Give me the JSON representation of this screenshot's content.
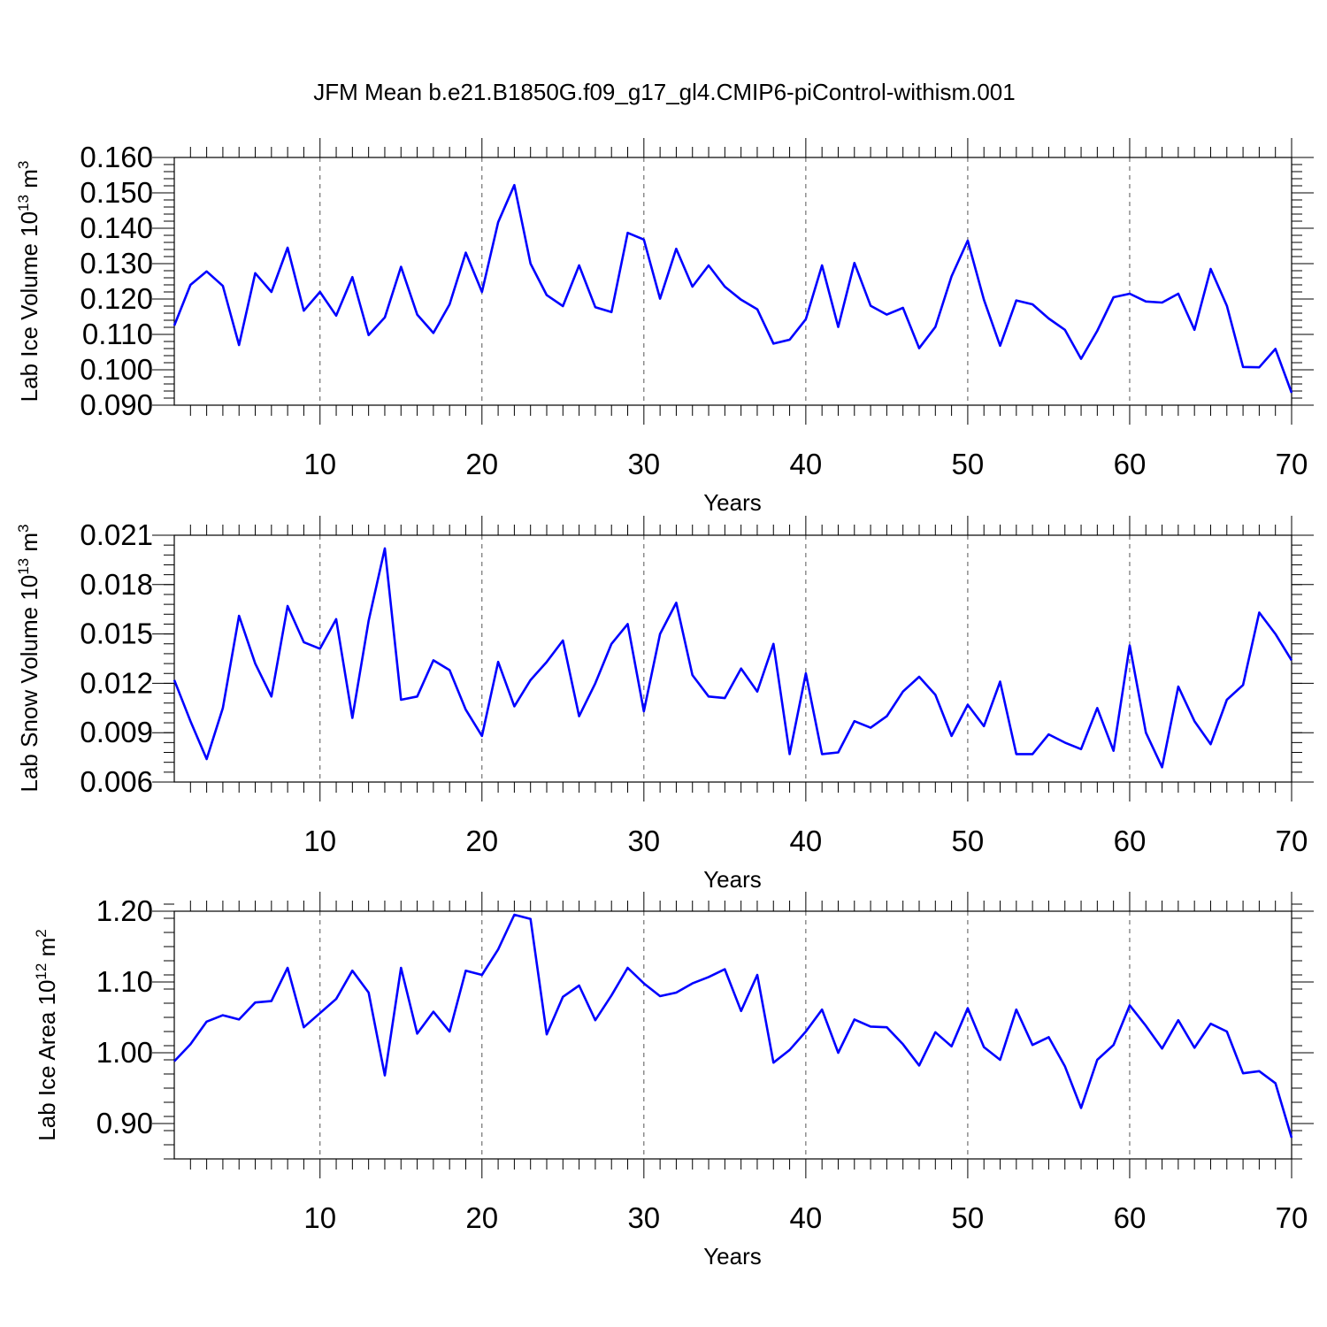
{
  "figure_title": "JFM Mean b.e21.B1850G.f09_g17_gl4.CMIP6-piControl-withism.001",
  "colors": {
    "line": "#0000ff",
    "frame": "#000000",
    "grid": "#555555"
  },
  "chart_data": [
    {
      "type": "line",
      "ylabel": {
        "text": "Lab Ice Volume 10",
        "sup1": "13",
        "mid": " m",
        "sup2": "3"
      },
      "xlabel": "Years",
      "xlim": [
        1,
        70
      ],
      "ylim": [
        0.09,
        0.16
      ],
      "yticks": [
        0.09,
        0.1,
        0.11,
        0.12,
        0.13,
        0.14,
        0.15,
        0.16
      ],
      "ytick_labels": [
        "0.090",
        "0.100",
        "0.110",
        "0.120",
        "0.130",
        "0.140",
        "0.150",
        "0.160"
      ],
      "yminor": 0.002,
      "xticks": [
        10,
        20,
        30,
        40,
        50,
        60,
        70
      ],
      "xtick_labels": [
        "10",
        "20",
        "30",
        "40",
        "50",
        "60",
        "70"
      ],
      "grid": "vertical dashed at major x ticks",
      "series": [
        {
          "values": [
            0.1125,
            0.124,
            0.1278,
            0.1237,
            0.107,
            0.1273,
            0.122,
            0.1345,
            0.1167,
            0.122,
            0.1153,
            0.1262,
            0.1098,
            0.1148,
            0.1291,
            0.1156,
            0.1104,
            0.1185,
            0.1331,
            0.122,
            0.1417,
            0.1522,
            0.13,
            0.1211,
            0.118,
            0.1295,
            0.1177,
            0.1163,
            0.1387,
            0.1368,
            0.1201,
            0.1342,
            0.1235,
            0.1295,
            0.1235,
            0.1198,
            0.1171,
            0.1074,
            0.1085,
            0.1143,
            0.1295,
            0.1121,
            0.1302,
            0.1181,
            0.1156,
            0.1175,
            0.1061,
            0.1121,
            0.1264,
            0.1365,
            0.1198,
            0.1068,
            0.1196,
            0.1185,
            0.1145,
            0.1113,
            0.1031,
            0.111,
            0.1205,
            0.1215,
            0.1193,
            0.119,
            0.1215,
            0.1113,
            0.1285,
            0.1181,
            0.1008,
            0.1007,
            0.1059,
            0.0935
          ]
        }
      ]
    },
    {
      "type": "line",
      "ylabel": {
        "text": "Lab Snow Volume 10",
        "sup1": "13",
        "mid": " m",
        "sup2": "3"
      },
      "xlabel": "Years",
      "xlim": [
        1,
        70
      ],
      "ylim": [
        0.006,
        0.021
      ],
      "yticks": [
        0.006,
        0.009,
        0.012,
        0.015,
        0.018,
        0.021
      ],
      "ytick_labels": [
        "0.006",
        "0.009",
        "0.012",
        "0.015",
        "0.018",
        "0.021"
      ],
      "yminor": 0.0006,
      "xticks": [
        10,
        20,
        30,
        40,
        50,
        60,
        70
      ],
      "xtick_labels": [
        "10",
        "20",
        "30",
        "40",
        "50",
        "60",
        "70"
      ],
      "grid": "vertical dashed at major x ticks",
      "series": [
        {
          "values": [
            0.0122,
            0.0097,
            0.0074,
            0.0105,
            0.0161,
            0.0132,
            0.0112,
            0.0167,
            0.0145,
            0.0141,
            0.0159,
            0.0099,
            0.0158,
            0.0202,
            0.011,
            0.0112,
            0.0134,
            0.0128,
            0.0104,
            0.0088,
            0.0133,
            0.0106,
            0.0122,
            0.0133,
            0.0146,
            0.01,
            0.012,
            0.0144,
            0.0156,
            0.0103,
            0.015,
            0.0169,
            0.0125,
            0.0112,
            0.0111,
            0.0129,
            0.0115,
            0.0144,
            0.0077,
            0.0126,
            0.0077,
            0.0078,
            0.0097,
            0.0093,
            0.01,
            0.0115,
            0.0124,
            0.0113,
            0.0088,
            0.0107,
            0.0094,
            0.0121,
            0.0077,
            0.0077,
            0.0089,
            0.0084,
            0.008,
            0.0105,
            0.0079,
            0.0143,
            0.009,
            0.0069,
            0.0118,
            0.0097,
            0.0083,
            0.011,
            0.0119,
            0.0163,
            0.015,
            0.0134
          ]
        }
      ]
    },
    {
      "type": "line",
      "ylabel": {
        "text": "Lab Ice Area 10",
        "sup1": "12",
        "mid": " m",
        "sup2": "2"
      },
      "xlabel": "Years",
      "xlim": [
        1,
        70
      ],
      "ylim": [
        0.85,
        1.2
      ],
      "yticks": [
        0.9,
        1.0,
        1.1,
        1.2
      ],
      "ytick_labels": [
        "0.90",
        "1.00",
        "1.10",
        "1.20"
      ],
      "yminor": 0.02,
      "xticks": [
        10,
        20,
        30,
        40,
        50,
        60,
        70
      ],
      "xtick_labels": [
        "10",
        "20",
        "30",
        "40",
        "50",
        "60",
        "70"
      ],
      "grid": "vertical dashed at major x ticks",
      "series": [
        {
          "values": [
            0.988,
            1.012,
            1.044,
            1.053,
            1.047,
            1.071,
            1.073,
            1.12,
            1.036,
            1.056,
            1.076,
            1.116,
            1.085,
            0.968,
            1.12,
            1.027,
            1.058,
            1.03,
            1.116,
            1.11,
            1.146,
            1.195,
            1.189,
            1.026,
            1.079,
            1.095,
            1.046,
            1.081,
            1.12,
            1.098,
            1.08,
            1.085,
            1.098,
            1.107,
            1.118,
            1.059,
            1.11,
            0.986,
            1.004,
            1.03,
            1.061,
            1.0,
            1.047,
            1.037,
            1.036,
            1.012,
            0.982,
            1.029,
            1.009,
            1.063,
            1.008,
            0.99,
            1.061,
            1.011,
            1.022,
            0.981,
            0.922,
            0.99,
            1.011,
            1.067,
            1.038,
            1.006,
            1.046,
            1.007,
            1.041,
            1.03,
            0.971,
            0.974,
            0.957,
            0.88
          ]
        }
      ]
    }
  ]
}
